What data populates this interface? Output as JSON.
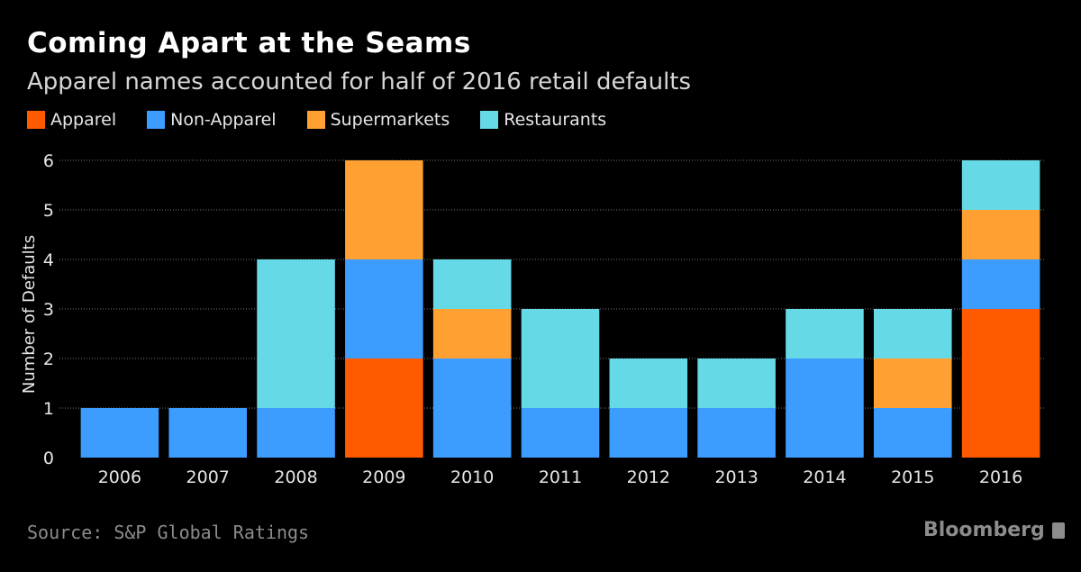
{
  "header": {
    "title": "Coming Apart at the Seams",
    "subtitle": "Apparel names accounted for half of 2016 retail defaults"
  },
  "footer": {
    "source": "Source: S&P Global Ratings",
    "brand": "Bloomberg"
  },
  "chart_data": {
    "type": "bar",
    "stacked": true,
    "title": "Coming Apart at the Seams",
    "subtitle": "Apparel names accounted for half of 2016 retail defaults",
    "xlabel": "",
    "ylabel": "Number of Defaults",
    "ylim": [
      0,
      6
    ],
    "yticks": [
      0,
      1,
      2,
      3,
      4,
      5,
      6
    ],
    "grid": true,
    "legend_position": "top-left",
    "categories": [
      "2006",
      "2007",
      "2008",
      "2009",
      "2010",
      "2011",
      "2012",
      "2013",
      "2014",
      "2015",
      "2016"
    ],
    "series": [
      {
        "name": "Apparel",
        "color": "#ff5a00",
        "values": [
          0,
          0,
          0,
          2,
          0,
          0,
          0,
          0,
          0,
          0,
          3
        ]
      },
      {
        "name": "Non-Apparel",
        "color": "#3d9dff",
        "values": [
          1,
          1,
          1,
          2,
          2,
          1,
          1,
          1,
          2,
          1,
          1
        ]
      },
      {
        "name": "Supermarkets",
        "color": "#ffa032",
        "values": [
          0,
          0,
          0,
          2,
          1,
          0,
          0,
          0,
          0,
          1,
          1
        ]
      },
      {
        "name": "Restaurants",
        "color": "#66d9e6",
        "values": [
          0,
          0,
          3,
          0,
          1,
          2,
          1,
          1,
          1,
          1,
          1
        ]
      }
    ]
  }
}
